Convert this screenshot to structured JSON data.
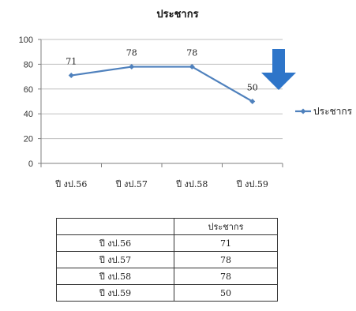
{
  "chart_data": {
    "type": "line",
    "title": "ประชากร",
    "categories": [
      "ปี งป.56",
      "ปี งป.57",
      "ปี งป.58",
      "ปี งป.59"
    ],
    "series": [
      {
        "name": "ประชากร",
        "values": [
          71,
          78,
          78,
          50
        ],
        "color": "#4f81bd"
      }
    ],
    "ylim": [
      0,
      100
    ],
    "yticks": [
      0,
      20,
      40,
      60,
      80,
      100
    ],
    "grid": true,
    "legend_position": "right",
    "annotation": {
      "icon": "arrow-down-icon",
      "color": "#2e75c9"
    }
  },
  "table": {
    "header": [
      "",
      "ประชากร"
    ],
    "rows": [
      [
        "ปี งป.56",
        "71"
      ],
      [
        "ปี งป.57",
        "78"
      ],
      [
        "ปี งป.58",
        "78"
      ],
      [
        "ปี งป.59",
        "50"
      ]
    ]
  }
}
